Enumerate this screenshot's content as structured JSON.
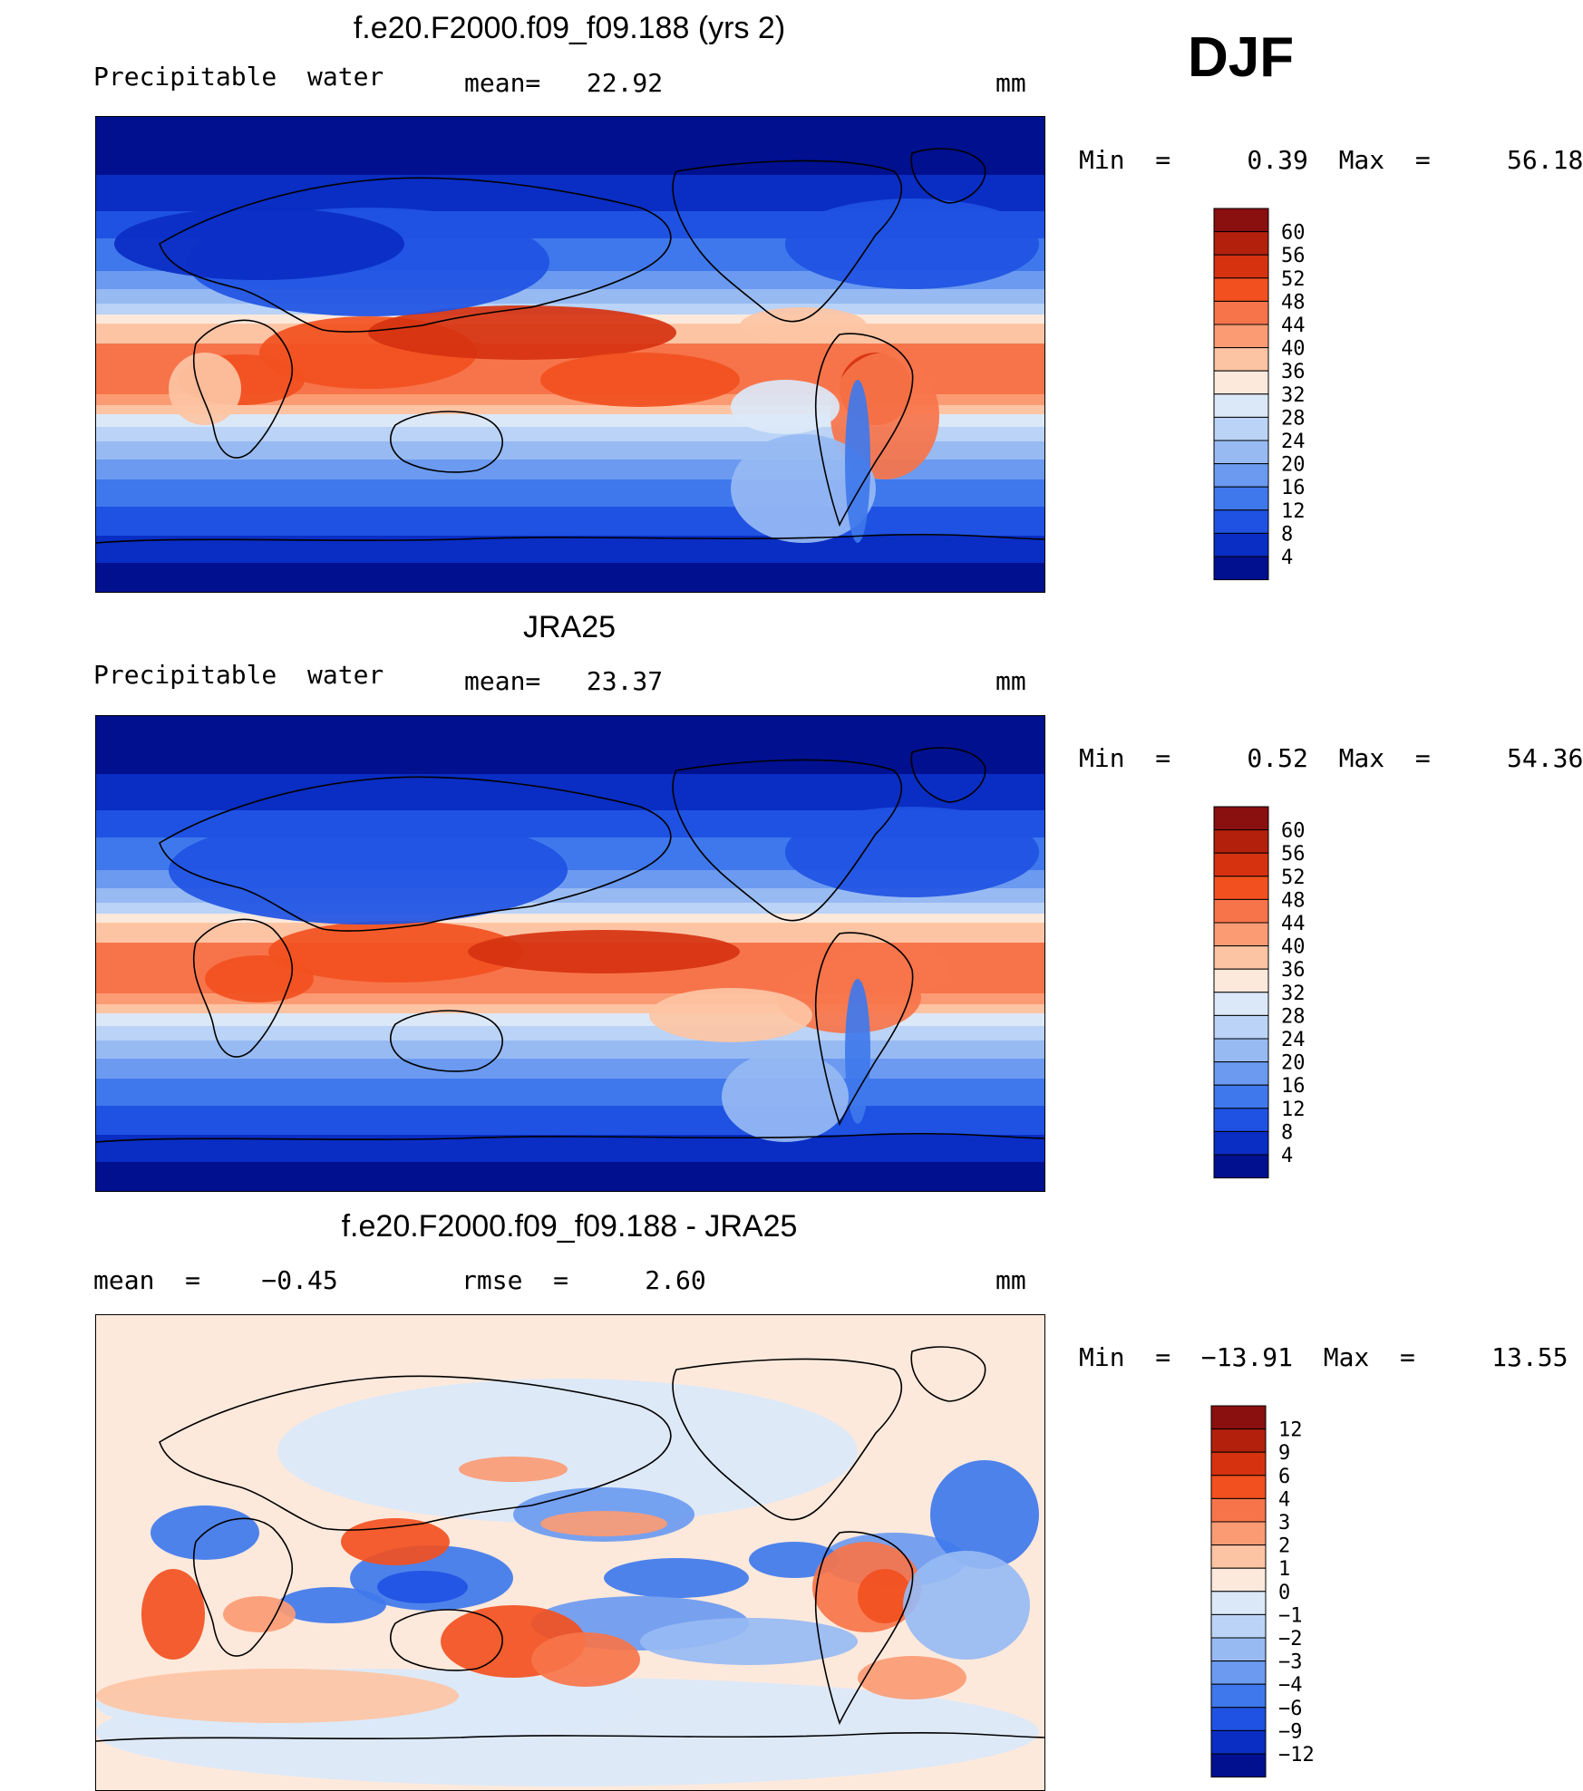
{
  "season": "DJF",
  "panels": [
    {
      "title": "f.e20.F2000.f09_f09.188 (yrs 2)",
      "left_label": "Precipitable  water",
      "mid_label": "mean=   22.92",
      "units": "mm",
      "range_label": "Min  =     0.39  Max  =     56.18",
      "colorbar": {
        "levels": [
          "60",
          "56",
          "52",
          "48",
          "44",
          "40",
          "36",
          "32",
          "28",
          "24",
          "20",
          "16",
          "12",
          "8",
          "4"
        ],
        "colors": [
          "#8a0f0f",
          "#b3200c",
          "#d63210",
          "#f2501f",
          "#f7744a",
          "#fb9b74",
          "#fdc4a4",
          "#fde9dc",
          "#dbe8f8",
          "#bad3f6",
          "#97baf3",
          "#6b9af0",
          "#3f78ec",
          "#1f52e3",
          "#0a2dc4",
          "#00108f"
        ]
      }
    },
    {
      "title": "JRA25",
      "left_label": "Precipitable  water",
      "mid_label": "mean=   23.37",
      "units": "mm",
      "range_label": "Min  =     0.52  Max  =     54.36",
      "colorbar": {
        "levels": [
          "60",
          "56",
          "52",
          "48",
          "44",
          "40",
          "36",
          "32",
          "28",
          "24",
          "20",
          "16",
          "12",
          "8",
          "4"
        ],
        "colors": [
          "#8a0f0f",
          "#b3200c",
          "#d63210",
          "#f2501f",
          "#f7744a",
          "#fb9b74",
          "#fdc4a4",
          "#fde9dc",
          "#dbe8f8",
          "#bad3f6",
          "#97baf3",
          "#6b9af0",
          "#3f78ec",
          "#1f52e3",
          "#0a2dc4",
          "#00108f"
        ]
      }
    },
    {
      "title": "f.e20.F2000.f09_f09.188 - JRA25",
      "left_label": "mean  =    −0.45",
      "mid_label": "rmse  =     2.60",
      "units": "mm",
      "range_label": "Min  =  −13.91  Max  =     13.55",
      "colorbar": {
        "levels": [
          "12",
          "9",
          "6",
          "4",
          "3",
          "2",
          "1",
          "0",
          "−1",
          "−2",
          "−3",
          "−4",
          "−6",
          "−9",
          "−12"
        ],
        "colors": [
          "#8a0f0f",
          "#b3200c",
          "#d63210",
          "#f2501f",
          "#f7744a",
          "#fb9b74",
          "#fdc4a4",
          "#fde9dc",
          "#dbe8f8",
          "#bad3f6",
          "#97baf3",
          "#6b9af0",
          "#3f78ec",
          "#1f52e3",
          "#0a2dc4",
          "#00108f"
        ]
      }
    }
  ]
}
